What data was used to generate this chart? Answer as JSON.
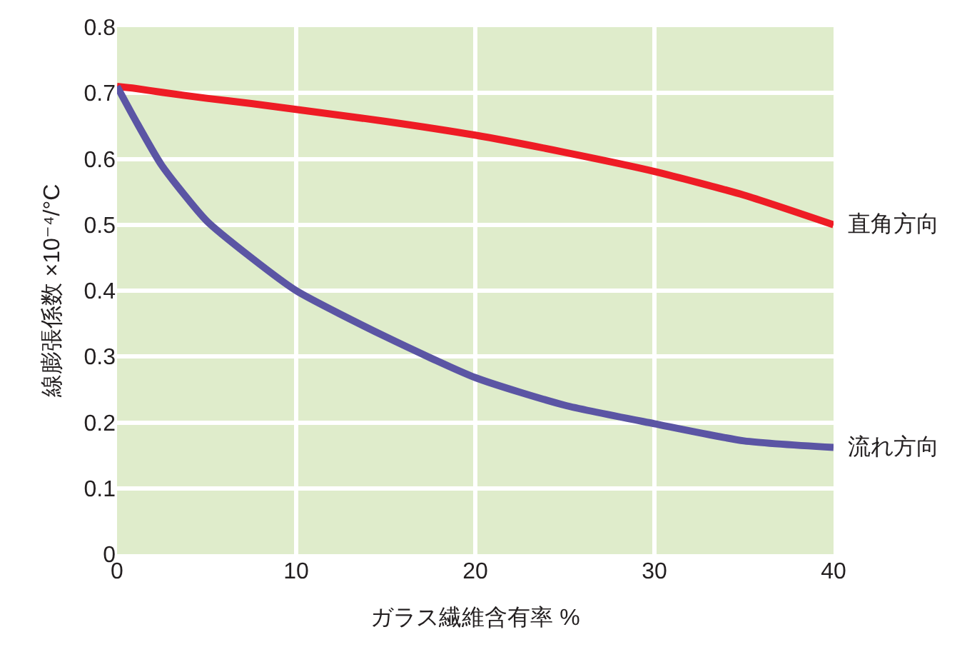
{
  "chart_data": {
    "type": "line",
    "xlabel": "ガラス繊維含有率 %",
    "ylabel": "線膨張係数 ×10⁻⁴/°C",
    "x": [
      0,
      1,
      2.5,
      5,
      7.5,
      10,
      15,
      20,
      25,
      30,
      35,
      40
    ],
    "series": [
      {
        "name": "直角方向",
        "color": "#ee1c25",
        "values": [
          0.71,
          0.707,
          0.701,
          0.692,
          0.684,
          0.675,
          0.657,
          0.636,
          0.61,
          0.581,
          0.545,
          0.5
        ]
      },
      {
        "name": "流れ方向",
        "color": "#5b55a4",
        "values": [
          0.71,
          0.66,
          0.59,
          0.506,
          0.45,
          0.4,
          0.33,
          0.268,
          0.226,
          0.198,
          0.172,
          0.162
        ]
      }
    ],
    "xlim": [
      0,
      40
    ],
    "xticks": [
      0,
      10,
      20,
      30,
      40
    ],
    "ylim": [
      0,
      0.8
    ],
    "yticks": [
      0,
      0.1,
      0.2,
      0.3,
      0.4,
      0.5,
      0.6,
      0.7,
      0.8
    ],
    "grid": true,
    "legend": false,
    "marker": "none",
    "line_style": "solid"
  }
}
